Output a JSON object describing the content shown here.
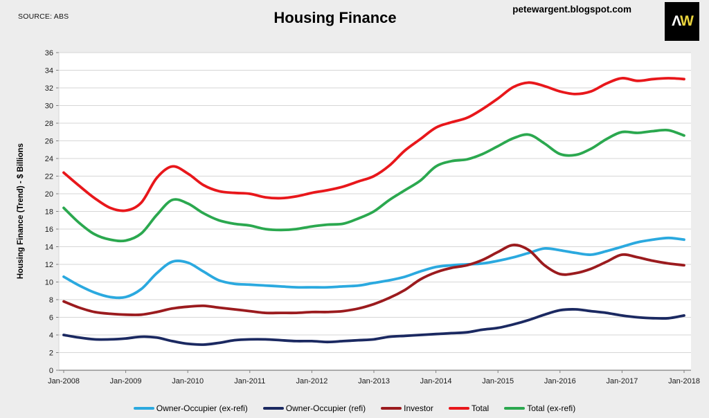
{
  "page": {
    "source": "SOURCE: ABS",
    "title": "Housing Finance",
    "watermark": "petewargent.blogspot.com",
    "logo": {
      "letter_1": "Λ",
      "letter_2": "W",
      "bg": "#000000",
      "letter_1_color": "#ffffff",
      "letter_2_color": "#e8d23c"
    }
  },
  "chart_data": {
    "type": "line",
    "title": "Housing Finance",
    "xlabel": "",
    "ylabel": "Housing Finance (Trend) - $ Billions",
    "ylim": [
      0,
      36
    ],
    "ytick_step": 2,
    "grid": true,
    "legend_position": "bottom",
    "plot_bg": "#ffffff",
    "page_bg": "#ededed",
    "grid_color": "#d6d6d6",
    "axis_color": "#7f7f7f",
    "x_tick_labels": [
      "Jan-2008",
      "Jan-2009",
      "Jan-2010",
      "Jan-2011",
      "Jan-2012",
      "Jan-2013",
      "Jan-2014",
      "Jan-2015",
      "Jan-2016",
      "Jan-2017",
      "Jan-2018"
    ],
    "x_tick_years": [
      2008,
      2009,
      2010,
      2011,
      2012,
      2013,
      2014,
      2015,
      2016,
      2017,
      2018
    ],
    "x": [
      2008.0,
      2008.25,
      2008.5,
      2008.75,
      2009.0,
      2009.25,
      2009.5,
      2009.75,
      2010.0,
      2010.25,
      2010.5,
      2010.75,
      2011.0,
      2011.25,
      2011.5,
      2011.75,
      2012.0,
      2012.25,
      2012.5,
      2012.75,
      2013.0,
      2013.25,
      2013.5,
      2013.75,
      2014.0,
      2014.25,
      2014.5,
      2014.75,
      2015.0,
      2015.25,
      2015.5,
      2015.75,
      2016.0,
      2016.25,
      2016.5,
      2016.75,
      2017.0,
      2017.25,
      2017.5,
      2017.75,
      2018.0
    ],
    "series": [
      {
        "name": "Owner-Occupier (ex-refi)",
        "color": "#2ba9df",
        "values": [
          10.6,
          9.6,
          8.8,
          8.3,
          8.3,
          9.2,
          11.0,
          12.3,
          12.2,
          11.2,
          10.2,
          9.8,
          9.7,
          9.6,
          9.5,
          9.4,
          9.4,
          9.4,
          9.5,
          9.6,
          9.9,
          10.2,
          10.6,
          11.2,
          11.7,
          11.9,
          12.0,
          12.1,
          12.4,
          12.8,
          13.3,
          13.8,
          13.6,
          13.3,
          13.1,
          13.5,
          14.0,
          14.5,
          14.8,
          15.0,
          14.8
        ]
      },
      {
        "name": "Owner-Occupier (refi)",
        "color": "#1b2961",
        "values": [
          4.0,
          3.7,
          3.5,
          3.5,
          3.6,
          3.8,
          3.7,
          3.3,
          3.0,
          2.9,
          3.1,
          3.4,
          3.5,
          3.5,
          3.4,
          3.3,
          3.3,
          3.2,
          3.3,
          3.4,
          3.5,
          3.8,
          3.9,
          4.0,
          4.1,
          4.2,
          4.3,
          4.6,
          4.8,
          5.2,
          5.7,
          6.3,
          6.8,
          6.9,
          6.7,
          6.5,
          6.2,
          6.0,
          5.9,
          5.9,
          6.2
        ]
      },
      {
        "name": "Investor",
        "color": "#9b1b1e",
        "values": [
          7.8,
          7.1,
          6.6,
          6.4,
          6.3,
          6.3,
          6.6,
          7.0,
          7.2,
          7.3,
          7.1,
          6.9,
          6.7,
          6.5,
          6.5,
          6.5,
          6.6,
          6.6,
          6.7,
          7.0,
          7.5,
          8.2,
          9.1,
          10.3,
          11.1,
          11.6,
          11.9,
          12.5,
          13.4,
          14.2,
          13.6,
          11.9,
          10.9,
          11.0,
          11.5,
          12.3,
          13.1,
          12.8,
          12.4,
          12.1,
          11.9
        ]
      },
      {
        "name": "Total",
        "color": "#e8171b",
        "values": [
          22.4,
          20.9,
          19.5,
          18.4,
          18.1,
          19.0,
          21.8,
          23.1,
          22.3,
          21.0,
          20.3,
          20.1,
          20.0,
          19.6,
          19.5,
          19.7,
          20.1,
          20.4,
          20.8,
          21.4,
          22.0,
          23.2,
          24.9,
          26.2,
          27.5,
          28.1,
          28.6,
          29.6,
          30.8,
          32.1,
          32.6,
          32.2,
          31.6,
          31.3,
          31.6,
          32.5,
          33.1,
          32.8,
          33.0,
          33.1,
          33.0
        ]
      },
      {
        "name": "Total (ex-refi)",
        "color": "#2ba84f",
        "values": [
          18.4,
          16.7,
          15.4,
          14.8,
          14.7,
          15.5,
          17.6,
          19.3,
          18.9,
          17.8,
          17.0,
          16.6,
          16.4,
          16.0,
          15.9,
          16.0,
          16.3,
          16.5,
          16.6,
          17.2,
          18.0,
          19.3,
          20.4,
          21.5,
          23.1,
          23.7,
          23.9,
          24.5,
          25.4,
          26.3,
          26.7,
          25.7,
          24.5,
          24.4,
          25.1,
          26.2,
          27.0,
          26.9,
          27.1,
          27.2,
          26.6
        ]
      }
    ]
  }
}
